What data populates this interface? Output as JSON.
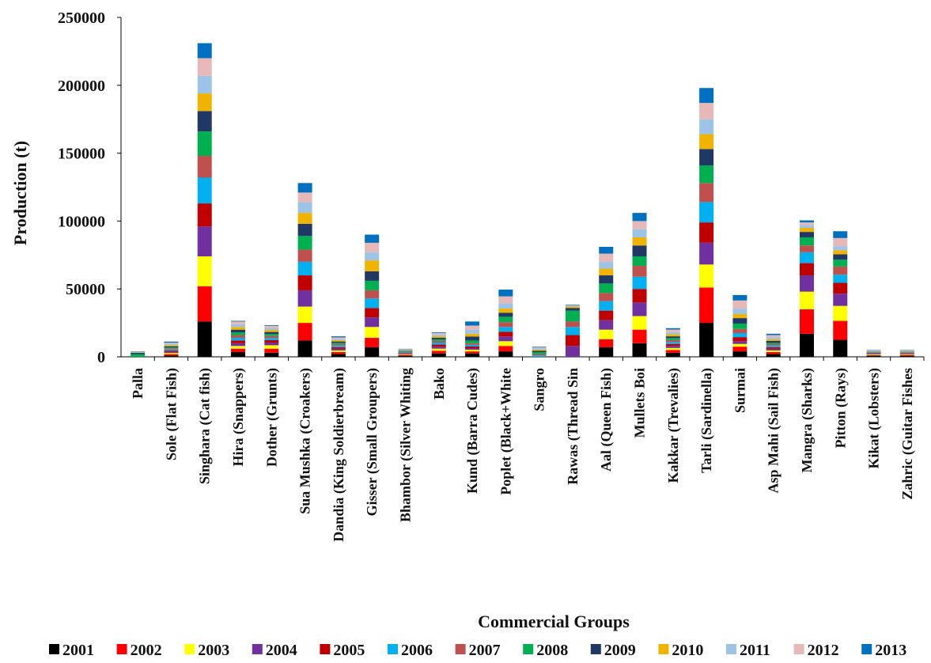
{
  "chart_data": {
    "type": "bar",
    "stacked": true,
    "title": "",
    "xlabel": "Commercial  Groups",
    "ylabel": "Production  (t)",
    "ylim": [
      0,
      250000
    ],
    "yticks": [
      0,
      50000,
      100000,
      150000,
      200000,
      250000
    ],
    "ytick_labels": [
      "0",
      "50000",
      "100000",
      "150000",
      "200000",
      "250000"
    ],
    "grid": false,
    "legend_position": "bottom",
    "categories": [
      "Palla",
      "Sole (Flat Fish)",
      "Singhara (Cat fish)",
      "Hira (Snappers)",
      "Dother (Grunts)",
      "Sua Mushka (Croakers)",
      "Dandia (King Soldierbream)",
      "Gisser (Small Groupers)",
      "Bhambor (Silver Whiting",
      "Bako",
      "Kund (Barra Cudes)",
      "Poplet (Black+White",
      "Sangro",
      "Rawas (Thread Sin",
      "Aal (Queen Fish)",
      "Mullets Boi",
      "Kakkar (Trevalies)",
      "Tarli (Sardinella)",
      "Surmai",
      "Asp Mahi (Sail Fish)",
      "Mangra (Sharks)",
      "Pitton (Rays)",
      "Kikat (Lobsters)",
      "Zahric (Guitar Fishes"
    ],
    "series": [
      {
        "name": "2001",
        "color": "#000000",
        "values": [
          0,
          1000,
          26000,
          3500,
          3000,
          12000,
          2000,
          7000,
          800,
          2500,
          2500,
          4000,
          0,
          0,
          7000,
          10000,
          3000,
          25000,
          4000,
          2000,
          17000,
          12500,
          800,
          800
        ]
      },
      {
        "name": "2002",
        "color": "#ff0000",
        "values": [
          0,
          1000,
          26000,
          2500,
          3000,
          13000,
          1500,
          7000,
          600,
          2000,
          1500,
          4000,
          0,
          0,
          6000,
          10000,
          2000,
          26000,
          3500,
          1500,
          18000,
          14000,
          500,
          600
        ]
      },
      {
        "name": "2003",
        "color": "#ffff00",
        "values": [
          0,
          800,
          22000,
          2000,
          2500,
          12000,
          1200,
          8000,
          500,
          1500,
          1200,
          3500,
          0,
          0,
          7000,
          10000,
          1500,
          17000,
          2000,
          1200,
          13000,
          11000,
          500,
          500
        ]
      },
      {
        "name": "2004",
        "color": "#7030a0",
        "values": [
          0,
          800,
          22000,
          2000,
          2000,
          12000,
          1200,
          7000,
          500,
          1500,
          1200,
          3500,
          0,
          8000,
          7000,
          10000,
          1500,
          16000,
          2000,
          1200,
          12000,
          9000,
          400,
          400
        ]
      },
      {
        "name": "2005",
        "color": "#c00000",
        "values": [
          0,
          1000,
          17000,
          2000,
          1800,
          11000,
          1200,
          7000,
          400,
          1500,
          1200,
          3500,
          0,
          8000,
          7000,
          10000,
          1500,
          15000,
          3000,
          1200,
          9000,
          8000,
          400,
          400
        ]
      },
      {
        "name": "2006",
        "color": "#00b0f0",
        "values": [
          0,
          800,
          19000,
          2000,
          1500,
          10000,
          1200,
          7000,
          400,
          1500,
          1200,
          3500,
          1000,
          6000,
          7000,
          9000,
          1500,
          15000,
          3000,
          1200,
          8000,
          6000,
          400,
          300
        ]
      },
      {
        "name": "2007",
        "color": "#c0504d",
        "values": [
          0,
          800,
          16000,
          2000,
          1500,
          9000,
          1000,
          6000,
          400,
          1200,
          1200,
          3500,
          1000,
          4000,
          6000,
          8000,
          1300,
          14000,
          3000,
          1000,
          5000,
          6000,
          300,
          300
        ]
      },
      {
        "name": "2008",
        "color": "#00b050",
        "values": [
          2000,
          800,
          18000,
          2000,
          1500,
          10000,
          1000,
          7000,
          400,
          1200,
          2000,
          4000,
          1500,
          8000,
          7000,
          7000,
          1500,
          13000,
          4000,
          1000,
          6000,
          5000,
          300,
          300
        ]
      },
      {
        "name": "2009",
        "color": "#1f3864",
        "values": [
          1000,
          800,
          15000,
          2000,
          1500,
          9000,
          1000,
          7000,
          400,
          1200,
          3000,
          3000,
          1000,
          2000,
          6000,
          8000,
          1300,
          12000,
          4000,
          1500,
          4000,
          4000,
          300,
          300
        ]
      },
      {
        "name": "2010",
        "color": "#f0b400",
        "values": [
          300,
          800,
          13000,
          2000,
          1500,
          8000,
          1000,
          8000,
          400,
          1200,
          2000,
          3000,
          800,
          1000,
          5000,
          6000,
          1500,
          11000,
          3000,
          1200,
          3000,
          3000,
          300,
          300
        ]
      },
      {
        "name": "2011",
        "color": "#9dc3e6",
        "values": [
          200,
          800,
          13000,
          2000,
          1500,
          8000,
          1000,
          6000,
          400,
          1200,
          3000,
          4000,
          800,
          500,
          5000,
          6000,
          1500,
          11000,
          4000,
          1500,
          2000,
          3000,
          300,
          300
        ]
      },
      {
        "name": "2012",
        "color": "#e6b8b7",
        "values": [
          200,
          1000,
          13000,
          2000,
          1500,
          7000,
          1000,
          7000,
          400,
          1000,
          3000,
          5000,
          800,
          300,
          6000,
          6000,
          2000,
          12000,
          6000,
          1500,
          2000,
          6000,
          300,
          300
        ]
      },
      {
        "name": "2013",
        "color": "#0070c0",
        "values": [
          300,
          800,
          11000,
          500,
          500,
          7000,
          800,
          6000,
          300,
          500,
          3000,
          5000,
          500,
          500,
          5000,
          6000,
          1000,
          11000,
          4000,
          1000,
          1500,
          5000,
          300,
          300
        ]
      }
    ]
  }
}
